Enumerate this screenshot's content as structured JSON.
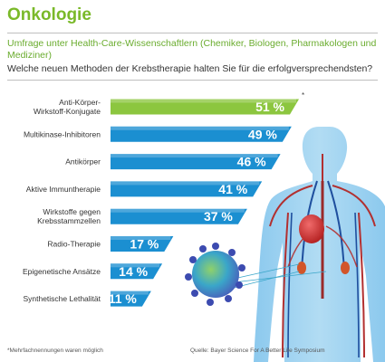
{
  "header": {
    "title": "Onkologie",
    "subtitle": "Umfrage unter Health-Care-Wissenschaftlern (Chemiker, Biologen, Pharmakologen und Mediziner)",
    "question": "Welche neuen Methoden der Krebstherapie halten Sie für die erfolgversprechendsten?"
  },
  "footer": {
    "note": "*Mehrfachnennungen waren möglich",
    "source": "Quelle: Bayer Science For A Better Life Symposium",
    "asterisk": "*"
  },
  "colors": {
    "title": "#7ab929",
    "highlight": "#8cc63f",
    "bars": "#1b8fd1",
    "bar_top": "#5cb8ea"
  },
  "chart_data": {
    "type": "bar",
    "orientation": "horizontal",
    "unit": "%",
    "categories": [
      [
        "Anti-Körper-",
        "Wirkstoff-Konjugate"
      ],
      [
        "Multikinase-Inhibitoren"
      ],
      [
        "Antikörper"
      ],
      [
        "Aktive Immuntherapie"
      ],
      [
        "Wirkstoffe gegen",
        "Krebsstammzellen"
      ],
      [
        "Radio-Therapie"
      ],
      [
        "Epigenetische Ansätze"
      ],
      [
        "Synthetische Lethalität"
      ]
    ],
    "values": [
      51,
      49,
      46,
      41,
      37,
      17,
      14,
      11
    ],
    "value_labels": [
      "51 %",
      "49 %",
      "46 %",
      "41 %",
      "37 %",
      "17 %",
      "14 %",
      "11 %"
    ],
    "highlight_index": 0,
    "grid": false,
    "xlim": [
      0,
      51
    ]
  }
}
